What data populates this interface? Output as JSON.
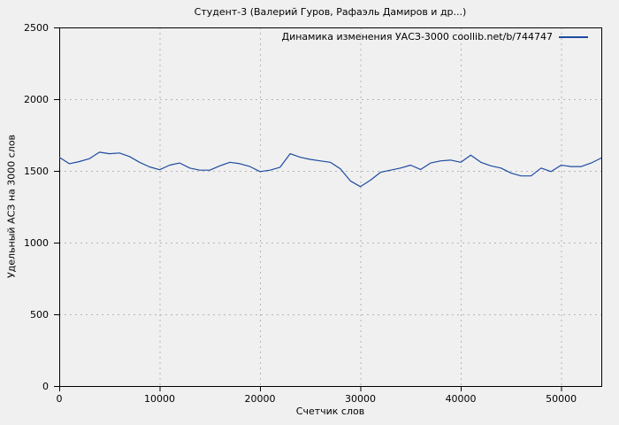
{
  "figure": {
    "background": "#f0f0f0",
    "text_color": "#000000"
  },
  "chart_data": {
    "type": "line",
    "title": "Студент-3 (Валерий Гуров, Рафаэль Дамиров и др...)",
    "xlabel": "Счетчик слов",
    "ylabel": "Удельный АСЗ на 3000 слов",
    "xlim": [
      0,
      54000
    ],
    "ylim": [
      0,
      2500
    ],
    "x_ticks": [
      0,
      10000,
      20000,
      30000,
      40000,
      50000
    ],
    "y_ticks": [
      0,
      500,
      1000,
      1500,
      2000,
      2500
    ],
    "grid": true,
    "grid_style": "dashed",
    "legend_position": "top-right-inside",
    "colors": {
      "line": "#1e4ba0",
      "grid": "#b5b5b5",
      "border": "#000000",
      "background": "#f0f0f0"
    },
    "series": [
      {
        "name": "Динамика изменения УАСЗ-3000 coollib.net/b/744747",
        "color": "#1e4ba0",
        "x_start": 0,
        "x_step": 1000,
        "values": [
          1595,
          1550,
          1565,
          1585,
          1630,
          1620,
          1625,
          1600,
          1560,
          1528,
          1508,
          1540,
          1555,
          1520,
          1505,
          1505,
          1535,
          1560,
          1550,
          1530,
          1495,
          1505,
          1525,
          1620,
          1595,
          1580,
          1570,
          1560,
          1515,
          1430,
          1390,
          1435,
          1490,
          1505,
          1520,
          1540,
          1510,
          1555,
          1570,
          1575,
          1560,
          1610,
          1560,
          1535,
          1520,
          1485,
          1465,
          1465,
          1520,
          1495,
          1540,
          1530,
          1530,
          1555,
          1590
        ]
      }
    ]
  }
}
